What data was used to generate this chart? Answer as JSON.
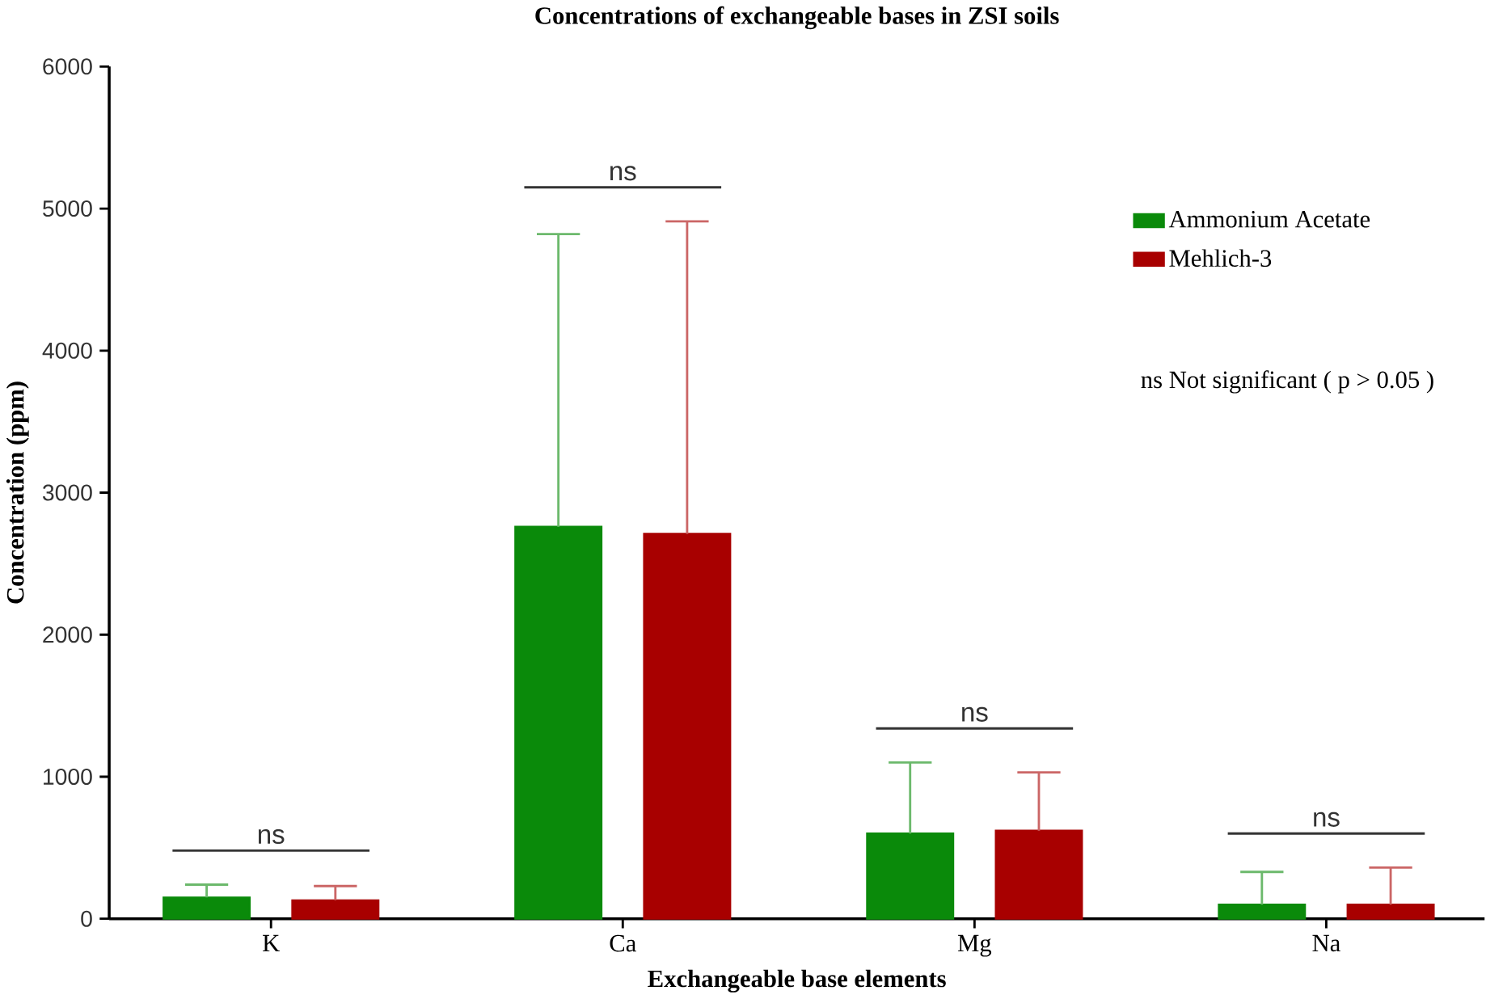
{
  "chart_data": {
    "type": "bar",
    "title": "Concentrations of exchangeable bases in ZSI soils",
    "xlabel": "Exchangeable base elements",
    "ylabel": "Concentration (ppm)",
    "categories": [
      "K",
      "Ca",
      "Mg",
      "Na"
    ],
    "series": [
      {
        "name": "Ammonium Acetate",
        "color": "#0a8a0a",
        "values": [
          150,
          2760,
          600,
          100
        ],
        "errors": [
          [
            150,
            240
          ],
          [
            2760,
            4820
          ],
          [
            600,
            1100
          ],
          [
            100,
            330
          ]
        ]
      },
      {
        "name": "Mehlich-3",
        "color": "#a80000",
        "values": [
          130,
          2710,
          620,
          100
        ],
        "errors": [
          [
            130,
            230
          ],
          [
            2710,
            4910
          ],
          [
            620,
            1030
          ],
          [
            100,
            360
          ]
        ]
      }
    ],
    "ylim": [
      0,
      6000
    ],
    "yticks": [
      0,
      1000,
      2000,
      3000,
      4000,
      5000,
      6000
    ],
    "grid": false,
    "legend": "top right",
    "annotations": [
      "ns",
      "ns",
      "ns",
      "ns",
      "ns  Not significant ( p > 0.05 )"
    ]
  }
}
